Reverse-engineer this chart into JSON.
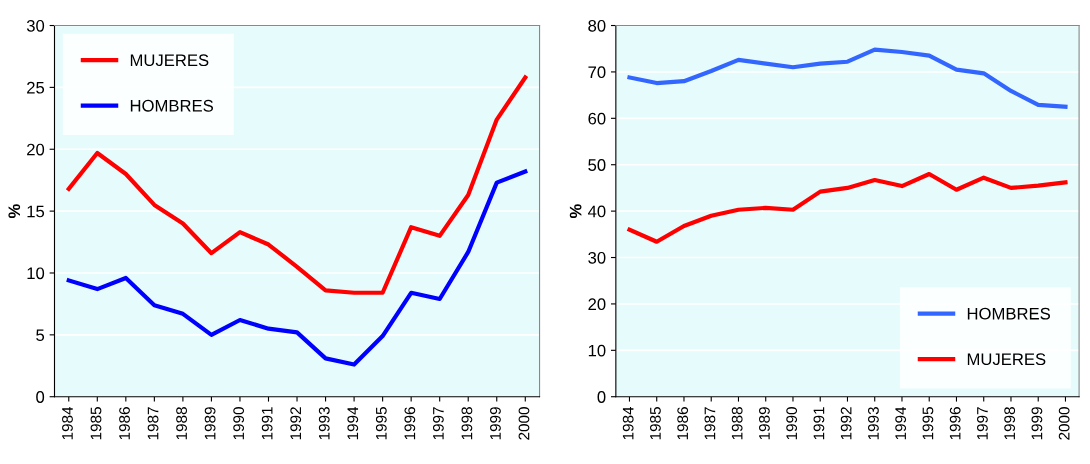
{
  "chart_data": [
    {
      "type": "line",
      "categories": [
        "1984",
        "1985",
        "1986",
        "1987",
        "1988",
        "1989",
        "1990",
        "1991",
        "1992",
        "1993",
        "1994",
        "1995",
        "1996",
        "1997",
        "1998",
        "1999",
        "2000"
      ],
      "ylabel": "%",
      "ylim": [
        0,
        30
      ],
      "yticks": [
        0,
        5,
        10,
        15,
        20,
        25,
        30
      ],
      "grid": "y",
      "legend": "top left",
      "line_style": "solid",
      "series": [
        {
          "name": "MUJERES",
          "color": "#ff0000",
          "values": [
            16.8,
            19.7,
            18.0,
            15.5,
            14.0,
            11.6,
            13.3,
            12.3,
            10.5,
            8.6,
            8.4,
            8.4,
            13.7,
            13.0,
            16.3,
            22.4,
            25.8
          ]
        },
        {
          "name": "HOMBRES",
          "color": "#0000ff",
          "values": [
            9.4,
            8.7,
            9.6,
            7.4,
            6.7,
            5.0,
            6.2,
            5.5,
            5.2,
            3.1,
            2.6,
            4.9,
            8.4,
            7.9,
            11.7,
            17.3,
            18.2
          ]
        }
      ]
    },
    {
      "type": "line",
      "categories": [
        "1984",
        "1985",
        "1986",
        "1987",
        "1988",
        "1989",
        "1990",
        "1991",
        "1992",
        "1993",
        "1994",
        "1995",
        "1996",
        "1997",
        "1998",
        "1999",
        "2000"
      ],
      "ylabel": "%",
      "ylim": [
        0,
        80
      ],
      "yticks": [
        0,
        10,
        20,
        30,
        40,
        50,
        60,
        70,
        80
      ],
      "grid": "y",
      "legend": "bottom right",
      "line_style": "solid",
      "series": [
        {
          "name": "HOMBRES",
          "color": "#3366ff",
          "values": [
            68.8,
            67.6,
            68.0,
            70.2,
            72.6,
            71.8,
            71.0,
            71.8,
            72.2,
            74.8,
            74.3,
            73.5,
            70.5,
            69.7,
            65.9,
            62.9,
            62.5
          ]
        },
        {
          "name": "MUJERES",
          "color": "#ff0000",
          "values": [
            36.0,
            33.4,
            36.8,
            39.0,
            40.3,
            40.7,
            40.3,
            44.2,
            45.0,
            46.7,
            45.4,
            48.0,
            44.6,
            47.2,
            45.0,
            45.5,
            46.2
          ]
        }
      ]
    }
  ]
}
